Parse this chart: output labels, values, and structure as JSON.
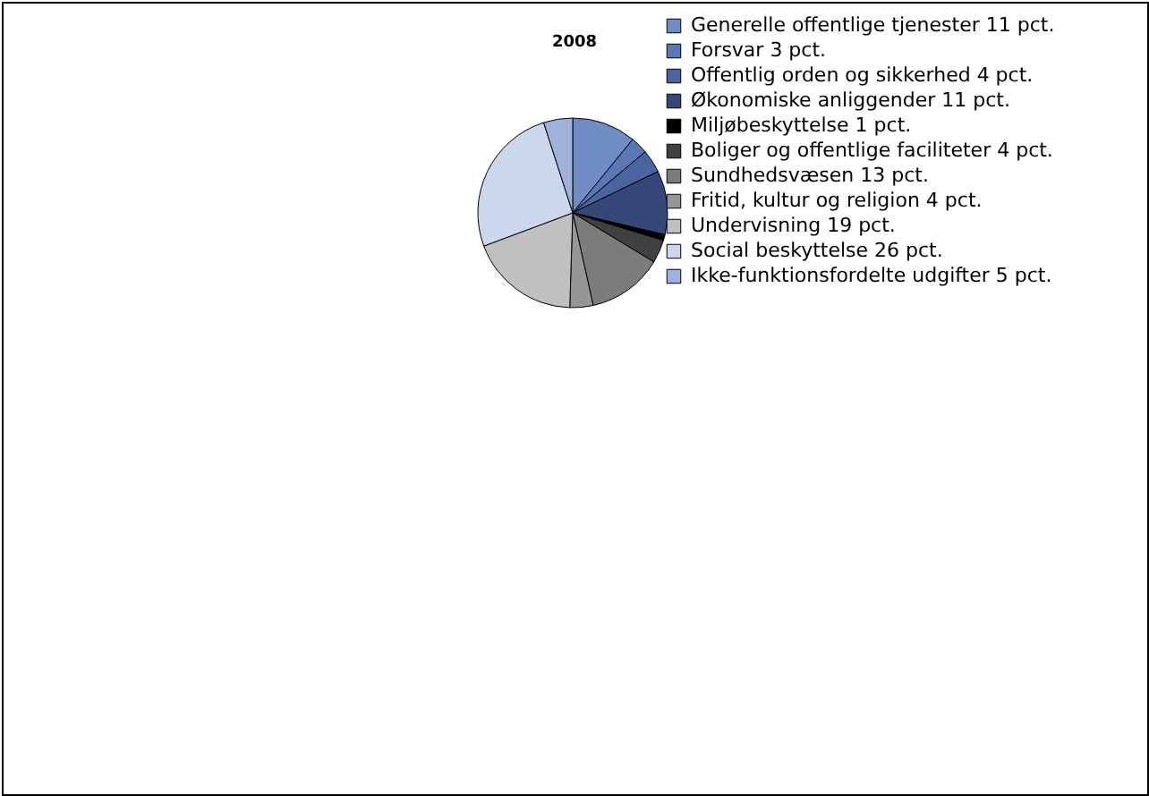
{
  "chart_data": {
    "type": "pie",
    "title": "2008",
    "categories": [
      "Generelle offentlige tjenester 11 pct.",
      "Forsvar 3 pct.",
      "Offentlig orden og sikkerhed 4 pct.",
      "Økonomiske anliggender 11 pct.",
      "Miljøbeskyttelse 1 pct.",
      "Boliger og offentlige faciliteter 4 pct.",
      "Sundhedsvæsen 13 pct.",
      "Fritid, kultur og religion 4 pct.",
      "Undervisning 19 pct.",
      "Social beskyttelse 26 pct.",
      "Ikke-funktionsfordelte udgifter 5 pct."
    ],
    "values": [
      11,
      3,
      4,
      11,
      1,
      4,
      13,
      4,
      19,
      26,
      5
    ],
    "colors": [
      "#6f8cc4",
      "#5a78b4",
      "#4a64a0",
      "#364878",
      "#000000",
      "#404040",
      "#7c7c7c",
      "#969696",
      "#c0c0c0",
      "#cbd7ec",
      "#9fb2dc"
    ],
    "legend": "right"
  }
}
